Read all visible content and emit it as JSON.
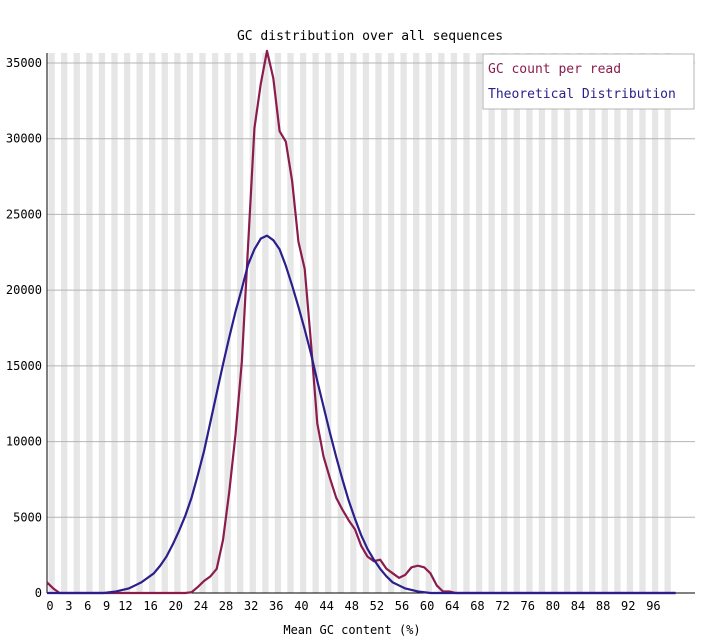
{
  "chart_data": {
    "type": "line",
    "title": "GC distribution over all sequences",
    "xlabel": "Mean GC content (%)",
    "ylabel": "",
    "xlim": [
      0,
      100
    ],
    "ylim": [
      0,
      35000
    ],
    "x_ticks": [
      0,
      3,
      6,
      9,
      12,
      16,
      20,
      24,
      28,
      32,
      36,
      40,
      44,
      48,
      52,
      56,
      60,
      64,
      68,
      72,
      76,
      80,
      84,
      88,
      92,
      96
    ],
    "y_ticks": [
      0,
      5000,
      10000,
      15000,
      20000,
      25000,
      30000,
      35000
    ],
    "x_tick_labels": [
      "0",
      "3",
      "6",
      "9",
      "12",
      "16",
      "20",
      "24",
      "28",
      "32",
      "36",
      "40",
      "44",
      "48",
      "52",
      "56",
      "60",
      "64",
      "68",
      "72",
      "76",
      "80",
      "84",
      "88",
      "92",
      "96"
    ],
    "y_tick_labels": [
      "0",
      "5000",
      "10000",
      "15000",
      "20000",
      "25000",
      "30000",
      "35000"
    ],
    "grid": true,
    "legend_position": "top-right",
    "series": [
      {
        "name": "GC count per read",
        "color": "#8b1c4e",
        "x": [
          0,
          1,
          2,
          3,
          4,
          5,
          6,
          7,
          8,
          9,
          10,
          11,
          12,
          13,
          14,
          15,
          16,
          17,
          18,
          19,
          20,
          21,
          22,
          23,
          24,
          25,
          26,
          27,
          28,
          29,
          30,
          31,
          32,
          33,
          34,
          35,
          36,
          37,
          38,
          39,
          40,
          41,
          42,
          43,
          44,
          45,
          46,
          47,
          48,
          49,
          50,
          51,
          52,
          53,
          54,
          55,
          56,
          57,
          58,
          59,
          60,
          61,
          62,
          63,
          64,
          65,
          66,
          67,
          68,
          69,
          70,
          75,
          80,
          85,
          90,
          95,
          100
        ],
        "y": [
          700,
          300,
          0,
          0,
          0,
          0,
          0,
          0,
          0,
          0,
          0,
          0,
          0,
          0,
          0,
          0,
          0,
          0,
          0,
          0,
          0,
          0,
          0,
          50,
          400,
          800,
          1100,
          1600,
          3500,
          6700,
          10500,
          15300,
          23000,
          30700,
          33600,
          35800,
          34000,
          30500,
          29800,
          27200,
          23200,
          21400,
          16500,
          11200,
          9000,
          7600,
          6300,
          5500,
          4800,
          4200,
          3100,
          2400,
          2100,
          2200,
          1600,
          1300,
          1000,
          1200,
          1700,
          1800,
          1700,
          1300,
          500,
          100,
          100,
          0,
          0,
          0,
          0,
          0,
          0,
          0,
          0,
          0,
          0,
          0,
          0
        ]
      },
      {
        "name": "Theoretical Distribution",
        "color": "#2a1f8c",
        "x": [
          0,
          1,
          2,
          3,
          4,
          5,
          6,
          7,
          8,
          9,
          10,
          11,
          12,
          13,
          14,
          15,
          16,
          17,
          18,
          19,
          20,
          21,
          22,
          23,
          24,
          25,
          26,
          27,
          28,
          29,
          30,
          31,
          32,
          33,
          34,
          35,
          36,
          37,
          38,
          39,
          40,
          41,
          42,
          43,
          44,
          45,
          46,
          47,
          48,
          49,
          50,
          51,
          52,
          53,
          54,
          55,
          56,
          57,
          58,
          59,
          60,
          61,
          62,
          63,
          64,
          65,
          66,
          67,
          68,
          69,
          70,
          75,
          80,
          85,
          90,
          95,
          100
        ],
        "y": [
          0,
          0,
          0,
          0,
          0,
          0,
          0,
          0,
          0,
          0,
          50,
          100,
          200,
          300,
          500,
          700,
          1000,
          1300,
          1800,
          2400,
          3200,
          4100,
          5100,
          6300,
          7800,
          9400,
          11300,
          13200,
          15100,
          16900,
          18600,
          20100,
          21700,
          22700,
          23400,
          23600,
          23300,
          22700,
          21600,
          20300,
          18900,
          17400,
          15800,
          14000,
          12300,
          10600,
          9000,
          7500,
          6100,
          4900,
          3800,
          2900,
          2200,
          1600,
          1100,
          700,
          500,
          300,
          200,
          100,
          50,
          0,
          0,
          0,
          0,
          0,
          0,
          0,
          0,
          0,
          0,
          0,
          0,
          0,
          0,
          0,
          0
        ]
      }
    ]
  }
}
